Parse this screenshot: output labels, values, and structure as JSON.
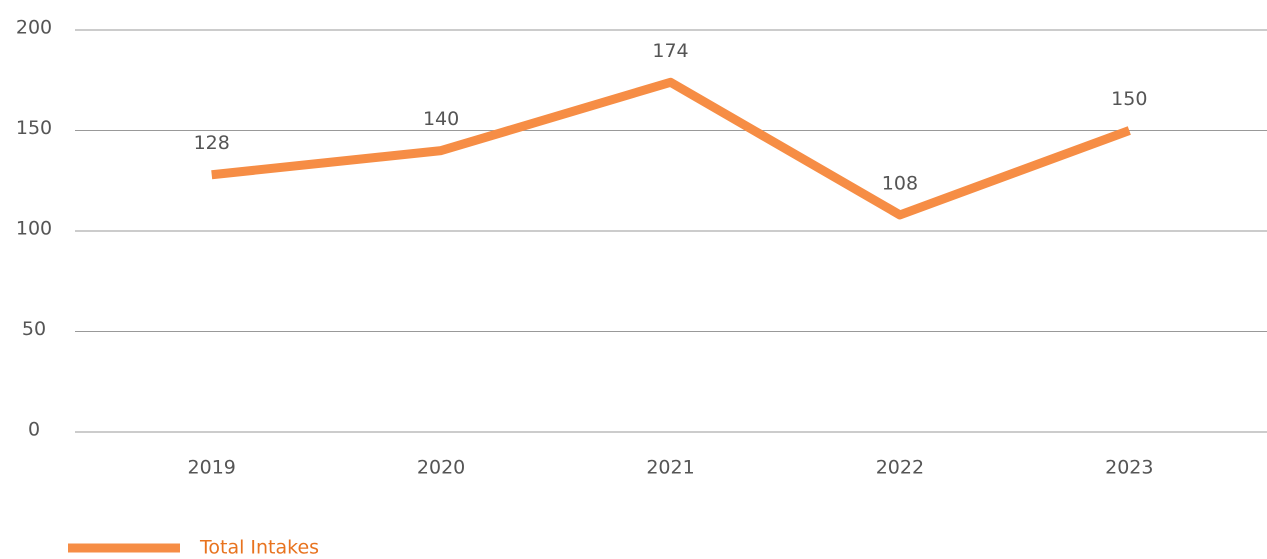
{
  "chart_data": {
    "type": "line",
    "categories": [
      "2019",
      "2020",
      "2021",
      "2022",
      "2023"
    ],
    "series": [
      {
        "name": "Total Intakes",
        "color": "#f68d45",
        "values": [
          128,
          140,
          174,
          108,
          150
        ]
      }
    ],
    "ylim": [
      0,
      200
    ],
    "yticks": [
      0,
      50,
      100,
      150,
      200
    ],
    "grid": true,
    "legend": "bottom-left"
  }
}
